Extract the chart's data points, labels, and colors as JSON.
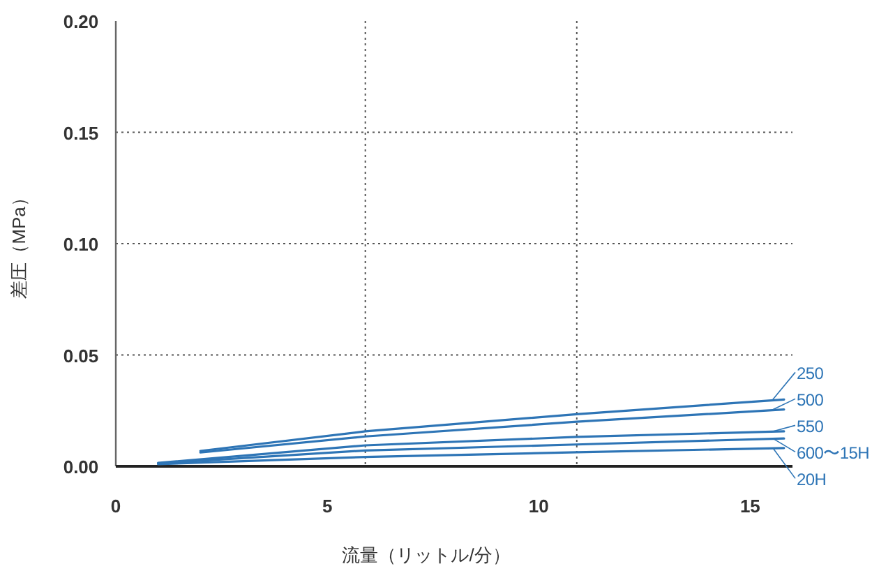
{
  "chart_data": {
    "type": "line",
    "xlabel": "流量（リットル/分）",
    "ylabel": "差圧（MPa）",
    "xlim": [
      0,
      16
    ],
    "xticks": [
      0,
      5,
      10,
      15
    ],
    "ylim": [
      0,
      0.2
    ],
    "yticks": [
      {
        "value": 0,
        "label": "0.00"
      },
      {
        "value": 0.05,
        "label": "0.05"
      },
      {
        "value": 0.1,
        "label": "0.10"
      },
      {
        "value": 0.15,
        "label": "0.15"
      },
      {
        "value": 0.2,
        "label": "0.20"
      }
    ],
    "grid": "y",
    "legend": "right",
    "marker": "none",
    "line_style": "solid",
    "ref_lines": [
      {
        "axis": "x",
        "value": 5.9,
        "color": "#555555",
        "line_style": "dotted"
      },
      {
        "axis": "x",
        "value": 10.9,
        "color": "#555555",
        "line_style": "dotted"
      }
    ],
    "series": [
      {
        "name": "250",
        "color": "#2e75b6",
        "x": [
          2.0,
          5.9,
          10.9,
          15.8
        ],
        "values": [
          0.0069,
          0.0157,
          0.0234,
          0.03
        ]
      },
      {
        "name": "500",
        "color": "#2e75b6",
        "x": [
          2.0,
          5.9,
          10.9,
          15.8
        ],
        "values": [
          0.0062,
          0.0134,
          0.02,
          0.0255
        ]
      },
      {
        "name": "550",
        "color": "#2e75b6",
        "x": [
          1.0,
          5.9,
          10.9,
          15.8
        ],
        "values": [
          0.0015,
          0.0094,
          0.0132,
          0.0157
        ]
      },
      {
        "name": "600〜15H",
        "color": "#2e75b6",
        "x": [
          1.0,
          5.9,
          10.9,
          15.8
        ],
        "values": [
          0.0013,
          0.0071,
          0.0098,
          0.0125
        ]
      },
      {
        "name": "20H",
        "color": "#2e75b6",
        "x": [
          1.0,
          5.9,
          10.9,
          15.8
        ],
        "values": [
          0.001,
          0.0042,
          0.0063,
          0.0082
        ]
      }
    ]
  }
}
